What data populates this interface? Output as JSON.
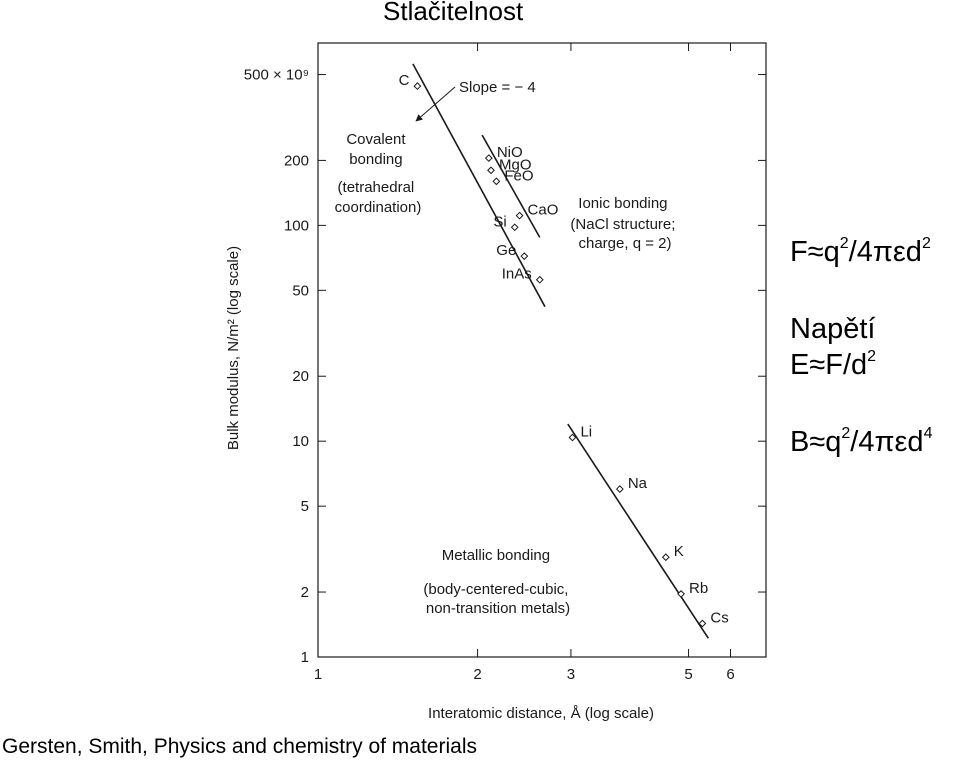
{
  "title": "Stlačitelnost",
  "source": "Gersten, Smith, Physics and chemistry of materials",
  "formulas": {
    "force": {
      "a": "F≈q",
      "e1": "2",
      "b": "/4πεd",
      "e2": "2"
    },
    "stress_label": "Napětí",
    "stress": {
      "a": "E≈F/d",
      "e1": "2"
    },
    "bulk": {
      "a": "B≈q",
      "e1": "2",
      "b": "/4πεd",
      "e2": "4"
    }
  },
  "chart_data": {
    "type": "scatter",
    "xscale": "log",
    "yscale": "log",
    "xlabel": "Interatomic distance, Å (log scale)",
    "ylabel": "Bulk modulus, N/m² (log scale)",
    "xlim": [
      1,
      7
    ],
    "ylim": [
      1,
      700
    ],
    "xticks": [
      {
        "v": 1,
        "label": "1"
      },
      {
        "v": 2,
        "label": "2"
      },
      {
        "v": 3,
        "label": "3"
      },
      {
        "v": 5,
        "label": "5"
      },
      {
        "v": 6,
        "label": "6"
      }
    ],
    "yticks": [
      {
        "v": 1,
        "label": "1"
      },
      {
        "v": 2,
        "label": "2"
      },
      {
        "v": 5,
        "label": "5"
      },
      {
        "v": 10,
        "label": "10"
      },
      {
        "v": 20,
        "label": "20"
      },
      {
        "v": 50,
        "label": "50"
      },
      {
        "v": 100,
        "label": "100"
      },
      {
        "v": 200,
        "label": "200"
      },
      {
        "v": 500,
        "label": "500 × 10⁹"
      }
    ],
    "groups": [
      {
        "name": "Covalent bonding",
        "points": [
          {
            "label": "C",
            "x": 1.54,
            "y": 442
          },
          {
            "label": "Si",
            "x": 2.35,
            "y": 98
          },
          {
            "label": "Ge",
            "x": 2.45,
            "y": 72
          },
          {
            "label": "InAs",
            "x": 2.62,
            "y": 56
          }
        ],
        "line": [
          [
            1.51,
            560
          ],
          [
            2.68,
            42
          ]
        ]
      },
      {
        "name": "Ionic bonding",
        "points": [
          {
            "label": "NiO",
            "x": 2.1,
            "y": 205
          },
          {
            "label": "MgO",
            "x": 2.12,
            "y": 180
          },
          {
            "label": "FeO",
            "x": 2.17,
            "y": 160
          },
          {
            "label": "CaO",
            "x": 2.4,
            "y": 111
          }
        ],
        "line": [
          [
            2.04,
            262
          ],
          [
            2.62,
            88
          ]
        ]
      },
      {
        "name": "Metallic bonding",
        "points": [
          {
            "label": "Li",
            "x": 3.02,
            "y": 10.4
          },
          {
            "label": "Na",
            "x": 3.71,
            "y": 6.0
          },
          {
            "label": "K",
            "x": 4.53,
            "y": 2.9
          },
          {
            "label": "Rb",
            "x": 4.84,
            "y": 1.96
          },
          {
            "label": "Cs",
            "x": 5.31,
            "y": 1.43
          }
        ],
        "line": [
          [
            2.96,
            12
          ],
          [
            5.45,
            1.22
          ]
        ]
      }
    ],
    "annotations": {
      "slope": "Slope = − 4",
      "covalent": [
        "Covalent",
        "bonding",
        "(tetrahedral",
        "coordination)"
      ],
      "ionic": [
        "Ionic bonding",
        "(NaCl structure;",
        "charge, q = 2)"
      ],
      "metallic": [
        "Metallic bonding",
        "(body-centered-cubic,",
        "non-transition metals)"
      ]
    }
  }
}
